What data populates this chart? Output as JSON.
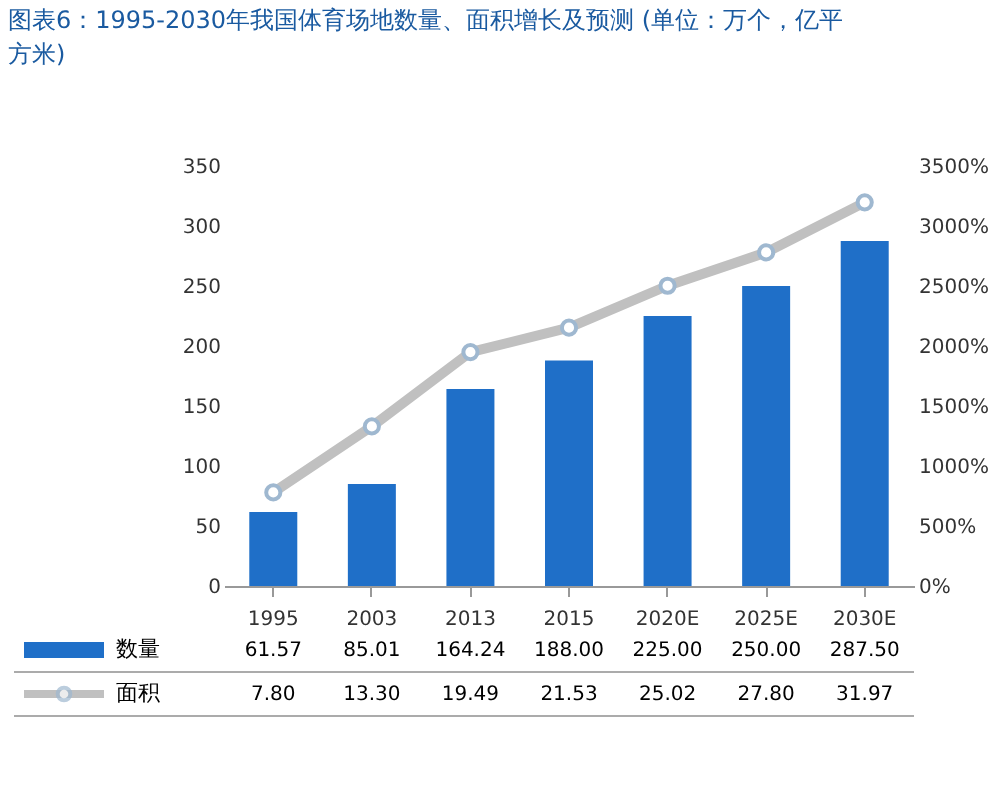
{
  "chart_data": {
    "type": "bar",
    "title": "图表6：1995-2030年我国体育场地数量、面积增长及预测 (单位：万个，亿平方米)",
    "categories": [
      "1995",
      "2003",
      "2013",
      "2015",
      "2020E",
      "2025E",
      "2030E"
    ],
    "series": [
      {
        "name": "数量",
        "color": "#1f6fc8",
        "values": [
          61.57,
          85.01,
          164.24,
          188.0,
          225.0,
          250.0,
          287.5
        ],
        "value_labels": [
          "61.57",
          "85.01",
          "164.24",
          "188.00",
          "225.00",
          "250.00",
          "287.50"
        ]
      },
      {
        "name": "面积",
        "type": "line",
        "axis": "y2",
        "color": "#c0c0c0",
        "marker": "circle",
        "values": [
          7.8,
          13.3,
          19.49,
          21.53,
          25.02,
          27.8,
          31.97
        ],
        "value_labels": [
          "7.80",
          "13.30",
          "19.49",
          "21.53",
          "25.02",
          "27.80",
          "31.97"
        ]
      }
    ],
    "ylim": [
      0,
      350
    ],
    "yticks": [
      0,
      50,
      100,
      150,
      200,
      250,
      300,
      350
    ],
    "y2lim": [
      0,
      35
    ],
    "y2ticks": [
      {
        "value": 0,
        "label": "0%"
      },
      {
        "value": 5,
        "label": "500%"
      },
      {
        "value": 10,
        "label": "1000%"
      },
      {
        "value": 15,
        "label": "1500%"
      },
      {
        "value": 20,
        "label": "2000%"
      },
      {
        "value": 25,
        "label": "2500%"
      },
      {
        "value": 30,
        "label": "3000%"
      },
      {
        "value": 35,
        "label": "3500%"
      }
    ],
    "grid": false,
    "legend": "bottom"
  }
}
